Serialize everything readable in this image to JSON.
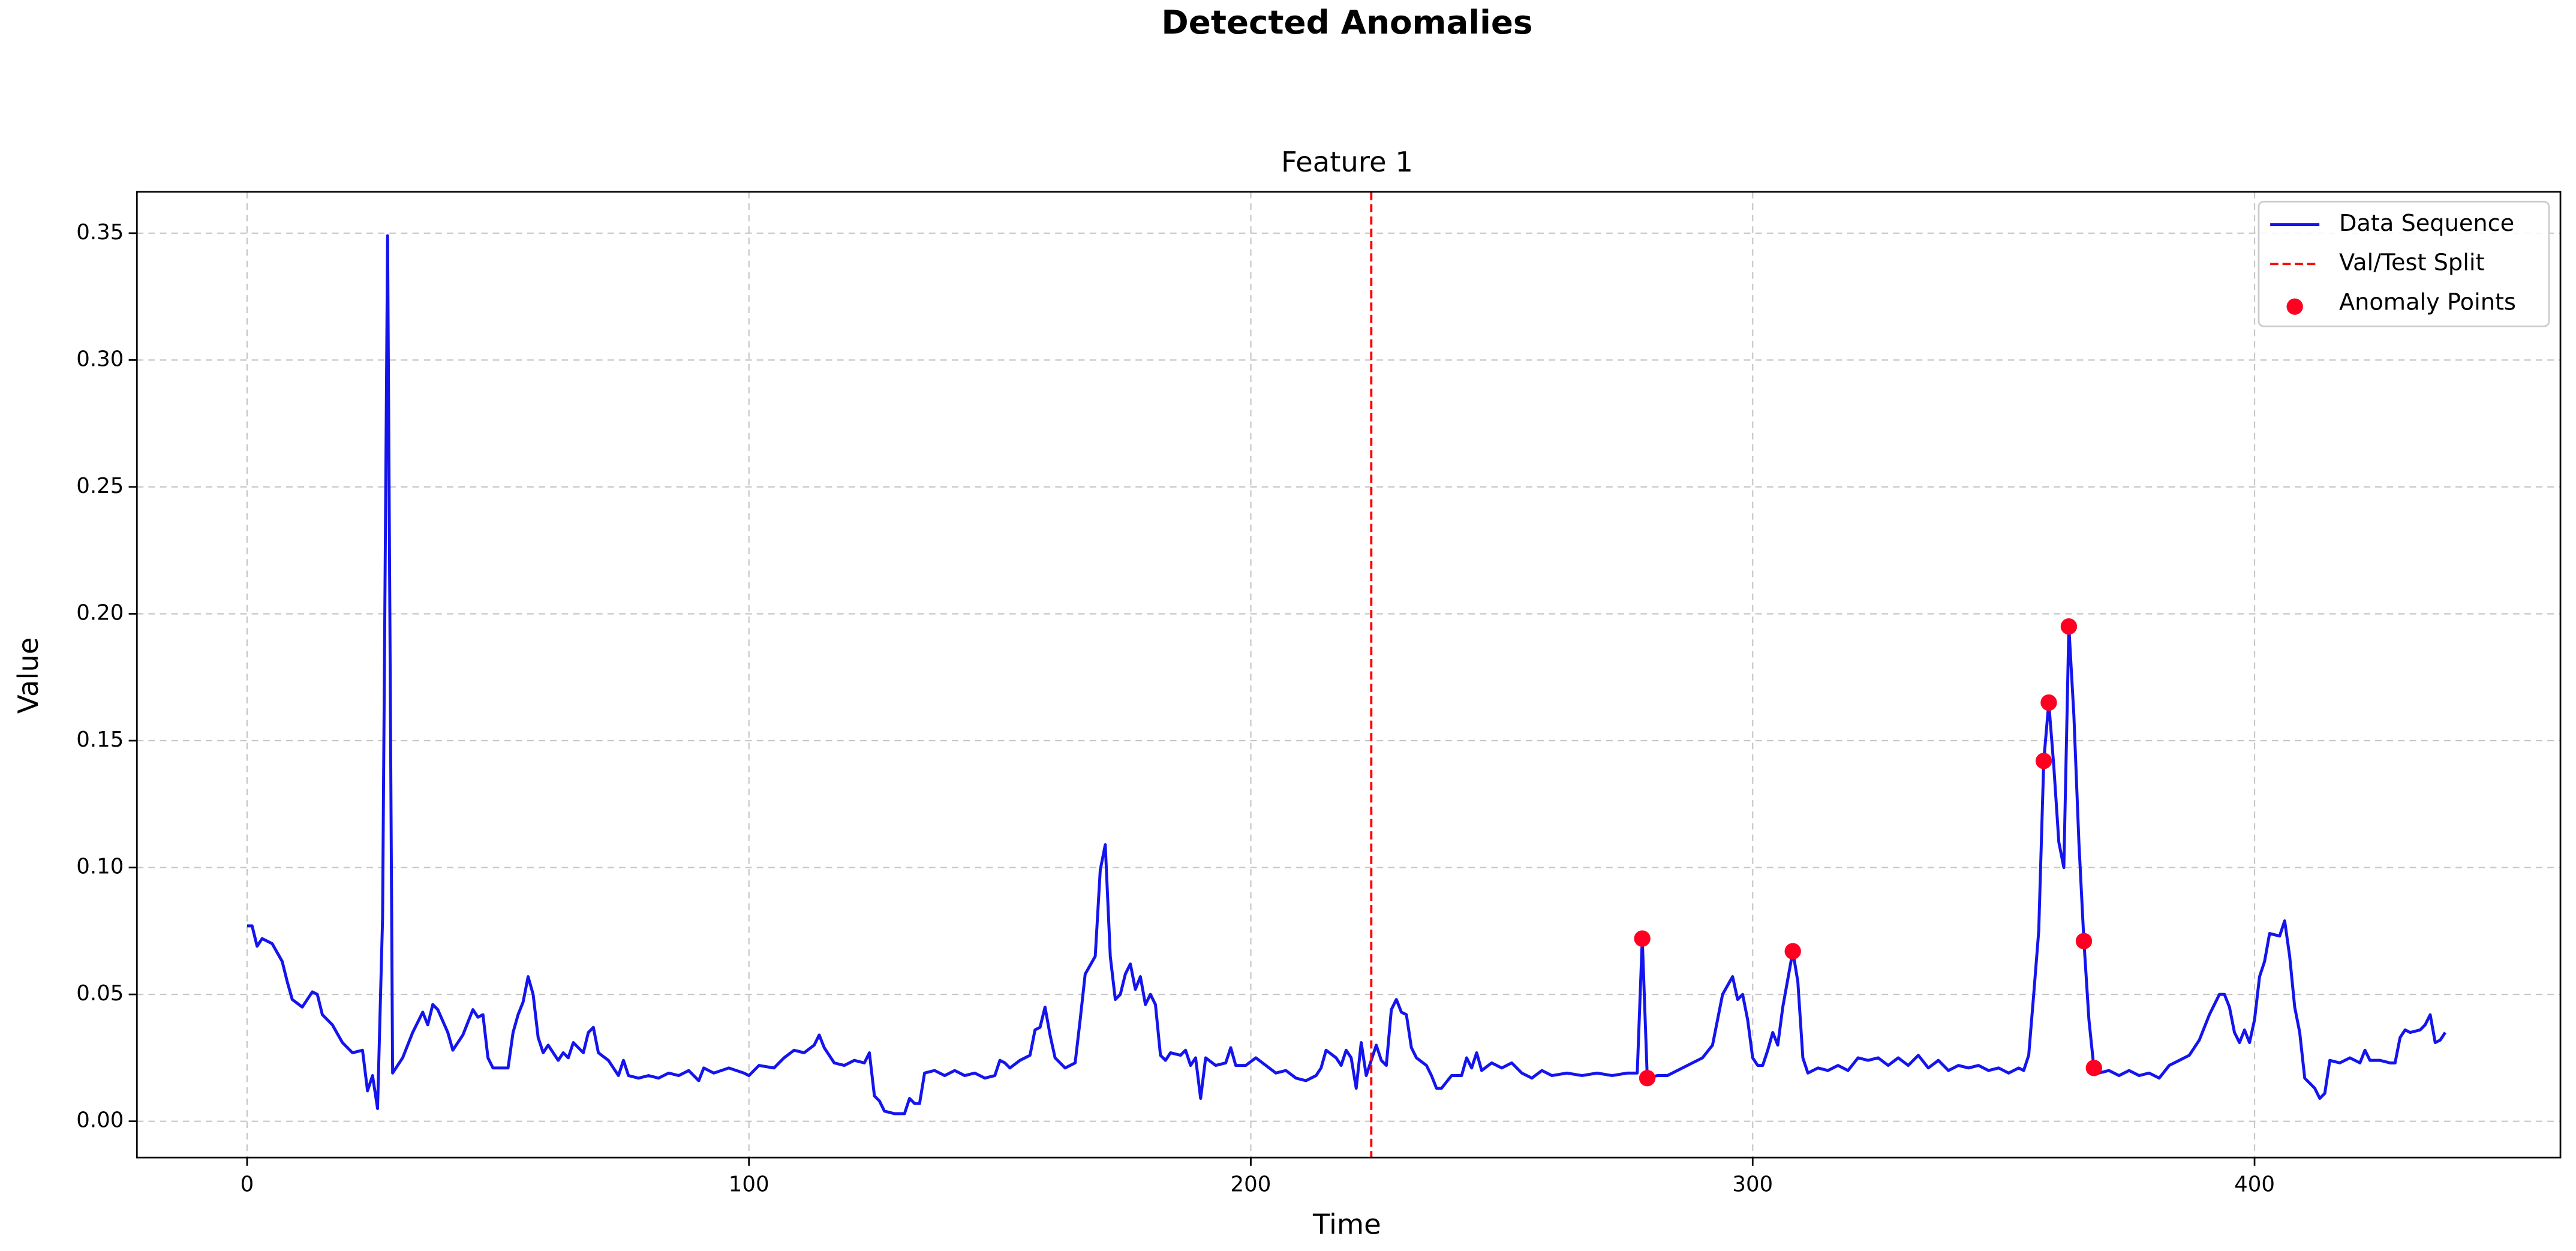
{
  "chart_data": {
    "type": "line",
    "title": "Detected Anomalies",
    "subtitle": "Feature 1",
    "x_label": "Time",
    "y_label": "Value",
    "x": [
      0,
      1,
      2,
      3,
      5,
      7,
      8,
      9,
      11,
      13,
      14,
      15,
      17,
      19,
      21,
      23,
      24,
      25,
      26,
      27,
      28,
      29,
      31,
      33,
      35,
      36,
      37,
      38,
      40,
      41,
      43,
      45,
      46,
      47,
      48,
      49,
      52,
      53,
      54,
      55,
      56,
      57,
      58,
      59,
      60,
      62,
      63,
      64,
      65,
      67,
      68,
      69,
      70,
      72,
      74,
      75,
      76,
      78,
      80,
      82,
      84,
      86,
      88,
      90,
      91,
      93,
      96,
      99,
      100,
      102,
      105,
      107,
      109,
      111,
      113,
      114,
      115,
      117,
      119,
      121,
      123,
      124,
      125,
      126,
      127,
      129,
      131,
      132,
      133,
      134,
      135,
      137,
      139,
      141,
      143,
      145,
      147,
      149,
      150,
      151,
      152,
      154,
      156,
      157,
      158,
      159,
      160,
      161,
      163,
      165,
      166,
      167,
      169,
      170,
      171,
      172,
      173,
      174,
      175,
      176,
      177,
      178,
      179,
      180,
      181,
      182,
      183,
      184,
      186,
      187,
      188,
      189,
      190,
      191,
      193,
      195,
      196,
      197,
      199,
      201,
      203,
      205,
      207,
      209,
      211,
      213,
      214,
      215,
      217,
      218,
      219,
      220,
      221,
      222,
      223,
      224,
      225,
      226,
      227,
      228,
      229,
      230,
      231,
      232,
      233,
      235,
      236,
      237,
      238,
      240,
      242,
      243,
      244,
      245,
      246,
      248,
      250,
      252,
      254,
      256,
      258,
      260,
      263,
      266,
      269,
      272,
      275,
      277,
      278,
      279,
      281,
      283,
      285,
      287,
      290,
      292,
      294,
      296,
      297,
      298,
      299,
      300,
      301,
      302,
      303,
      304,
      305,
      306,
      308,
      309,
      310,
      311,
      313,
      315,
      317,
      319,
      321,
      323,
      325,
      327,
      329,
      331,
      333,
      335,
      337,
      339,
      341,
      343,
      345,
      347,
      349,
      351,
      353,
      354,
      355,
      356,
      357,
      358,
      359,
      360,
      361,
      362,
      363,
      364,
      365,
      366,
      367,
      368,
      369,
      371,
      373,
      375,
      377,
      379,
      381,
      383,
      385,
      387,
      389,
      391,
      393,
      394,
      395,
      396,
      397,
      398,
      399,
      400,
      401,
      402,
      403,
      405,
      406,
      407,
      408,
      409,
      410,
      412,
      413,
      414,
      415,
      417,
      419,
      421,
      422,
      423,
      425,
      427,
      428,
      429,
      430,
      431,
      433,
      434,
      435,
      436,
      437,
      438
    ],
    "series": [
      {
        "name": "Data Sequence",
        "color": "#1414ee",
        "values": [
          0.077,
          0.077,
          0.069,
          0.072,
          0.07,
          0.063,
          0.055,
          0.048,
          0.045,
          0.051,
          0.05,
          0.042,
          0.038,
          0.031,
          0.027,
          0.028,
          0.012,
          0.018,
          0.005,
          0.08,
          0.349,
          0.019,
          0.025,
          0.035,
          0.043,
          0.038,
          0.046,
          0.044,
          0.035,
          0.028,
          0.034,
          0.044,
          0.041,
          0.042,
          0.025,
          0.021,
          0.021,
          0.035,
          0.042,
          0.047,
          0.057,
          0.05,
          0.033,
          0.027,
          0.03,
          0.024,
          0.027,
          0.025,
          0.031,
          0.027,
          0.035,
          0.037,
          0.027,
          0.024,
          0.018,
          0.024,
          0.018,
          0.017,
          0.018,
          0.017,
          0.019,
          0.018,
          0.02,
          0.016,
          0.021,
          0.019,
          0.021,
          0.019,
          0.018,
          0.022,
          0.021,
          0.025,
          0.028,
          0.027,
          0.03,
          0.034,
          0.029,
          0.023,
          0.022,
          0.024,
          0.023,
          0.027,
          0.01,
          0.008,
          0.004,
          0.003,
          0.003,
          0.009,
          0.007,
          0.007,
          0.019,
          0.02,
          0.018,
          0.02,
          0.018,
          0.019,
          0.017,
          0.018,
          0.024,
          0.023,
          0.021,
          0.024,
          0.026,
          0.036,
          0.037,
          0.045,
          0.034,
          0.025,
          0.021,
          0.023,
          0.04,
          0.058,
          0.065,
          0.099,
          0.109,
          0.065,
          0.048,
          0.05,
          0.058,
          0.062,
          0.052,
          0.057,
          0.046,
          0.05,
          0.046,
          0.026,
          0.024,
          0.027,
          0.026,
          0.028,
          0.022,
          0.025,
          0.009,
          0.025,
          0.022,
          0.023,
          0.029,
          0.022,
          0.022,
          0.025,
          0.022,
          0.019,
          0.02,
          0.017,
          0.016,
          0.018,
          0.021,
          0.028,
          0.025,
          0.022,
          0.028,
          0.025,
          0.013,
          0.031,
          0.018,
          0.024,
          0.03,
          0.024,
          0.022,
          0.044,
          0.048,
          0.043,
          0.042,
          0.029,
          0.025,
          0.022,
          0.018,
          0.013,
          0.013,
          0.018,
          0.018,
          0.025,
          0.021,
          0.027,
          0.02,
          0.023,
          0.021,
          0.023,
          0.019,
          0.017,
          0.02,
          0.018,
          0.019,
          0.018,
          0.019,
          0.018,
          0.019,
          0.019,
          0.072,
          0.017,
          0.018,
          0.018,
          0.02,
          0.022,
          0.025,
          0.03,
          0.05,
          0.057,
          0.048,
          0.05,
          0.04,
          0.025,
          0.022,
          0.022,
          0.028,
          0.035,
          0.03,
          0.045,
          0.067,
          0.055,
          0.025,
          0.019,
          0.021,
          0.02,
          0.022,
          0.02,
          0.025,
          0.024,
          0.025,
          0.022,
          0.025,
          0.022,
          0.026,
          0.021,
          0.024,
          0.02,
          0.022,
          0.021,
          0.022,
          0.02,
          0.021,
          0.019,
          0.021,
          0.02,
          0.026,
          0.05,
          0.075,
          0.142,
          0.165,
          0.14,
          0.11,
          0.1,
          0.195,
          0.16,
          0.11,
          0.071,
          0.04,
          0.021,
          0.019,
          0.02,
          0.018,
          0.02,
          0.018,
          0.019,
          0.017,
          0.022,
          0.024,
          0.026,
          0.032,
          0.042,
          0.05,
          0.05,
          0.045,
          0.035,
          0.031,
          0.036,
          0.031,
          0.04,
          0.057,
          0.063,
          0.074,
          0.073,
          0.079,
          0.065,
          0.045,
          0.035,
          0.017,
          0.013,
          0.009,
          0.011,
          0.024,
          0.023,
          0.025,
          0.023,
          0.028,
          0.024,
          0.024,
          0.023,
          0.023,
          0.033,
          0.036,
          0.035,
          0.036,
          0.038,
          0.042,
          0.031,
          0.032,
          0.035
        ]
      }
    ],
    "split": {
      "name": "Val/Test Split",
      "x": 224,
      "color": "#ff0000"
    },
    "anomalies": {
      "name": "Anomaly Points",
      "color": "#ff0022",
      "x": [
        278,
        279,
        308,
        358,
        359,
        363,
        366,
        368
      ],
      "values": [
        0.072,
        0.017,
        0.067,
        0.142,
        0.165,
        0.195,
        0.071,
        0.021
      ]
    },
    "xlim": [
      -21.95,
      460.95
    ],
    "ylim": [
      -0.0143,
      0.3663
    ],
    "xticks": [
      0,
      100,
      200,
      300,
      400
    ],
    "yticks": [
      {
        "value": 0,
        "label": "0.00"
      },
      0.05,
      {
        "value": 0.1,
        "label": "0.10"
      },
      0.15,
      {
        "value": 0.2,
        "label": "0.20"
      },
      0.25,
      {
        "value": 0.3,
        "label": "0.30"
      },
      0.35
    ],
    "grid": true,
    "legend": "upper right"
  }
}
